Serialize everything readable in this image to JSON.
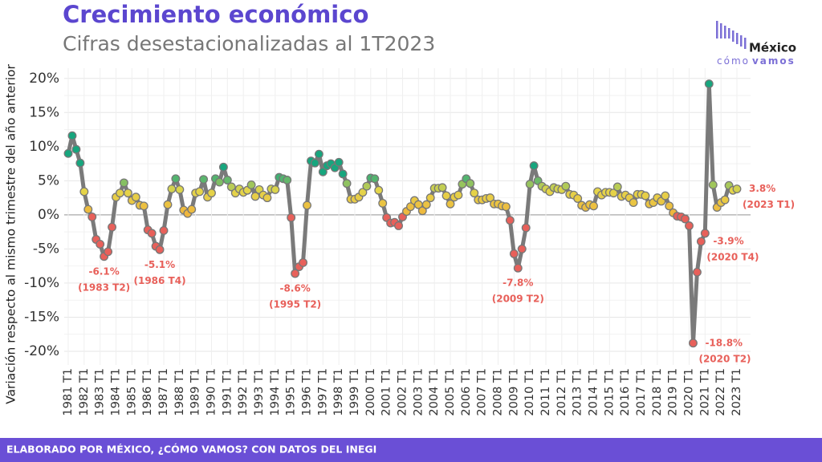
{
  "chart_data": {
    "type": "line",
    "title": "Crecimiento económico",
    "subtitle": "Cifras desestacionalizadas al 1T2023",
    "y_label": "Variación respecto al mismo trimestre del año anterior",
    "footer": "ELABORADO POR MÉXICO, ¿CÓMO VAMOS? CON DATOS DEL INEGI",
    "logo": {
      "name": "México",
      "tagline_light": "cómo",
      "tagline_bold": "vamos"
    },
    "line_color": "#7a7a7a",
    "label_color": "#e8605a",
    "grid": true,
    "ylim": [
      -22,
      21.5
    ],
    "yticks": [
      {
        "value": -20,
        "label": "-20%"
      },
      {
        "value": -15,
        "label": "-15%"
      },
      {
        "value": -10,
        "label": "-10%"
      },
      {
        "value": -5,
        "label": "-5%"
      },
      {
        "value": 0,
        "label": "0%"
      },
      {
        "value": 5,
        "label": "5%"
      },
      {
        "value": 10,
        "label": "10%"
      },
      {
        "value": 15,
        "label": "15%"
      },
      {
        "value": 20,
        "label": "20%"
      }
    ],
    "categories": [
      "1981 T1",
      null,
      null,
      null,
      "1982 T1",
      null,
      null,
      null,
      "1983 T1",
      null,
      null,
      null,
      "1984 T1",
      null,
      null,
      null,
      "1985 T1",
      null,
      null,
      null,
      "1986 T1",
      null,
      null,
      null,
      "1987 T1",
      null,
      null,
      null,
      "1988 T1",
      null,
      null,
      null,
      "1989 T1",
      null,
      null,
      null,
      "1990 T1",
      null,
      null,
      null,
      "1991 T1",
      null,
      null,
      null,
      "1992 T1",
      null,
      null,
      null,
      "1993 T1",
      null,
      null,
      null,
      "1994 T1",
      null,
      null,
      null,
      "1995 T1",
      null,
      null,
      null,
      "1996 T1",
      null,
      null,
      null,
      "1997 T1",
      null,
      null,
      null,
      "1998 T1",
      null,
      null,
      null,
      "1999 T1",
      null,
      null,
      null,
      "2000 T1",
      null,
      null,
      null,
      "2001 T1",
      null,
      null,
      null,
      "2002 T1",
      null,
      null,
      null,
      "2003 T1",
      null,
      null,
      null,
      "2004 T1",
      null,
      null,
      null,
      "2005 T1",
      null,
      null,
      null,
      "2006 T1",
      null,
      null,
      null,
      "2007 T1",
      null,
      null,
      null,
      "2008 T1",
      null,
      null,
      null,
      "2009 T1",
      null,
      null,
      null,
      "2010 T1",
      null,
      null,
      null,
      "2011 T1",
      null,
      null,
      null,
      "2012 T1",
      null,
      null,
      null,
      "2013 T1",
      null,
      null,
      null,
      "2014 T1",
      null,
      null,
      null,
      "2015 T1",
      null,
      null,
      null,
      "2016 T1",
      null,
      null,
      null,
      "2017 T1",
      null,
      null,
      null,
      "2018 T1",
      null,
      null,
      null,
      "2019 T1",
      null,
      null,
      null,
      "2020 T1",
      null,
      null,
      null,
      "2021 T1",
      null,
      null,
      null,
      "2022 T1",
      null,
      null,
      null,
      "2023 T1"
    ],
    "values": [
      9.0,
      11.6,
      9.6,
      7.6,
      3.4,
      0.8,
      -0.3,
      -3.6,
      -4.3,
      -6.1,
      -5.4,
      -1.8,
      2.6,
      3.2,
      4.7,
      3.2,
      2.1,
      2.6,
      1.4,
      1.3,
      -2.2,
      -2.7,
      -4.6,
      -5.1,
      -2.3,
      1.5,
      3.8,
      5.3,
      3.7,
      0.7,
      0.2,
      0.8,
      3.2,
      3.4,
      5.2,
      2.6,
      3.2,
      5.3,
      4.8,
      7.0,
      5.1,
      4.1,
      3.2,
      3.8,
      3.3,
      3.6,
      4.4,
      2.7,
      3.7,
      2.9,
      2.5,
      3.8,
      3.7,
      5.5,
      5.3,
      5.1,
      -0.4,
      -8.6,
      -7.6,
      -7.0,
      1.4,
      7.9,
      7.6,
      8.9,
      6.3,
      7.2,
      7.5,
      6.9,
      7.7,
      6.0,
      4.6,
      2.3,
      2.3,
      2.6,
      3.3,
      4.2,
      5.4,
      5.3,
      3.6,
      1.7,
      -0.4,
      -1.2,
      -1.1,
      -1.6,
      -0.3,
      0.5,
      1.2,
      2.1,
      1.5,
      0.6,
      1.5,
      2.5,
      3.9,
      3.9,
      4.0,
      2.8,
      1.6,
      2.6,
      2.9,
      4.5,
      5.3,
      4.6,
      3.2,
      2.2,
      2.2,
      2.4,
      2.5,
      1.6,
      1.6,
      1.3,
      1.2,
      -0.8,
      -5.7,
      -7.8,
      -5.0,
      -1.9,
      4.5,
      7.2,
      5.0,
      4.2,
      3.8,
      3.4,
      4.0,
      3.8,
      3.7,
      4.2,
      3.0,
      2.9,
      2.4,
      1.4,
      1.1,
      1.5,
      1.3,
      3.4,
      2.9,
      3.3,
      3.3,
      3.2,
      4.1,
      2.7,
      2.9,
      2.5,
      1.8,
      3.0,
      3.0,
      2.8,
      1.6,
      1.8,
      2.5,
      2.0,
      2.8,
      1.3,
      0.3,
      -0.2,
      -0.3,
      -0.6,
      -1.6,
      -18.8,
      -8.4,
      -3.9,
      -2.7,
      19.2,
      4.4,
      1.1,
      1.8,
      2.2,
      4.3,
      3.6,
      3.8
    ],
    "value_labels": [
      null,
      null,
      null,
      null,
      null,
      null,
      null,
      null,
      null,
      "-6.1%",
      null,
      null,
      null,
      null,
      null,
      null,
      null,
      null,
      null,
      null,
      null,
      null,
      null,
      "-5.1%",
      null,
      null,
      null,
      null,
      null,
      null,
      null,
      null,
      null,
      null,
      null,
      null,
      null,
      null,
      null,
      null,
      null,
      null,
      null,
      null,
      null,
      null,
      null,
      null,
      null,
      null,
      null,
      null,
      null,
      null,
      null,
      null,
      null,
      "-8.6%",
      null,
      null,
      null,
      null,
      null,
      null,
      null,
      null,
      null,
      null,
      null,
      null,
      null,
      null,
      null,
      null,
      null,
      null,
      null,
      null,
      null,
      null,
      null,
      null,
      null,
      null,
      null,
      null,
      null,
      null,
      null,
      null,
      null,
      null,
      null,
      null,
      null,
      null,
      null,
      null,
      null,
      null,
      null,
      null,
      null,
      null,
      null,
      null,
      null,
      null,
      null,
      null,
      null,
      null,
      null,
      "-7.8%",
      null,
      null,
      null,
      null,
      null,
      null,
      null,
      null,
      null,
      null,
      null,
      null,
      null,
      null,
      null,
      null,
      null,
      null,
      null,
      null,
      null,
      null,
      null,
      null,
      null,
      null,
      null,
      null,
      null,
      null,
      null,
      null,
      null,
      null,
      null,
      null,
      null,
      null,
      null,
      null,
      null,
      null,
      null,
      "-18.8%",
      null,
      "-3.9%",
      null,
      null,
      null,
      null,
      null,
      null,
      null,
      null,
      "3.8%"
    ],
    "point_notes": [
      null,
      null,
      null,
      null,
      null,
      null,
      null,
      null,
      null,
      "(1983 T2)",
      null,
      null,
      null,
      null,
      null,
      null,
      null,
      null,
      null,
      null,
      null,
      null,
      null,
      "(1986 T4)",
      null,
      null,
      null,
      null,
      null,
      null,
      null,
      null,
      null,
      null,
      null,
      null,
      null,
      null,
      null,
      null,
      null,
      null,
      null,
      null,
      null,
      null,
      null,
      null,
      null,
      null,
      null,
      null,
      null,
      null,
      null,
      null,
      null,
      "(1995 T2)",
      null,
      null,
      null,
      null,
      null,
      null,
      null,
      null,
      null,
      null,
      null,
      null,
      null,
      null,
      null,
      null,
      null,
      null,
      null,
      null,
      null,
      null,
      null,
      null,
      null,
      null,
      null,
      null,
      null,
      null,
      null,
      null,
      null,
      null,
      null,
      null,
      null,
      null,
      null,
      null,
      null,
      null,
      null,
      null,
      null,
      null,
      null,
      null,
      null,
      null,
      null,
      null,
      null,
      null,
      null,
      "(2009 T2)",
      null,
      null,
      null,
      null,
      null,
      null,
      null,
      null,
      null,
      null,
      null,
      null,
      null,
      null,
      null,
      null,
      null,
      null,
      null,
      null,
      null,
      null,
      null,
      null,
      null,
      null,
      null,
      null,
      null,
      null,
      null,
      null,
      null,
      null,
      null,
      null,
      null,
      null,
      null,
      null,
      null,
      null,
      null,
      "(2020 T2)",
      null,
      "(2020 T4)",
      null,
      null,
      null,
      null,
      null,
      null,
      null,
      null,
      "(2023 T1)"
    ]
  }
}
